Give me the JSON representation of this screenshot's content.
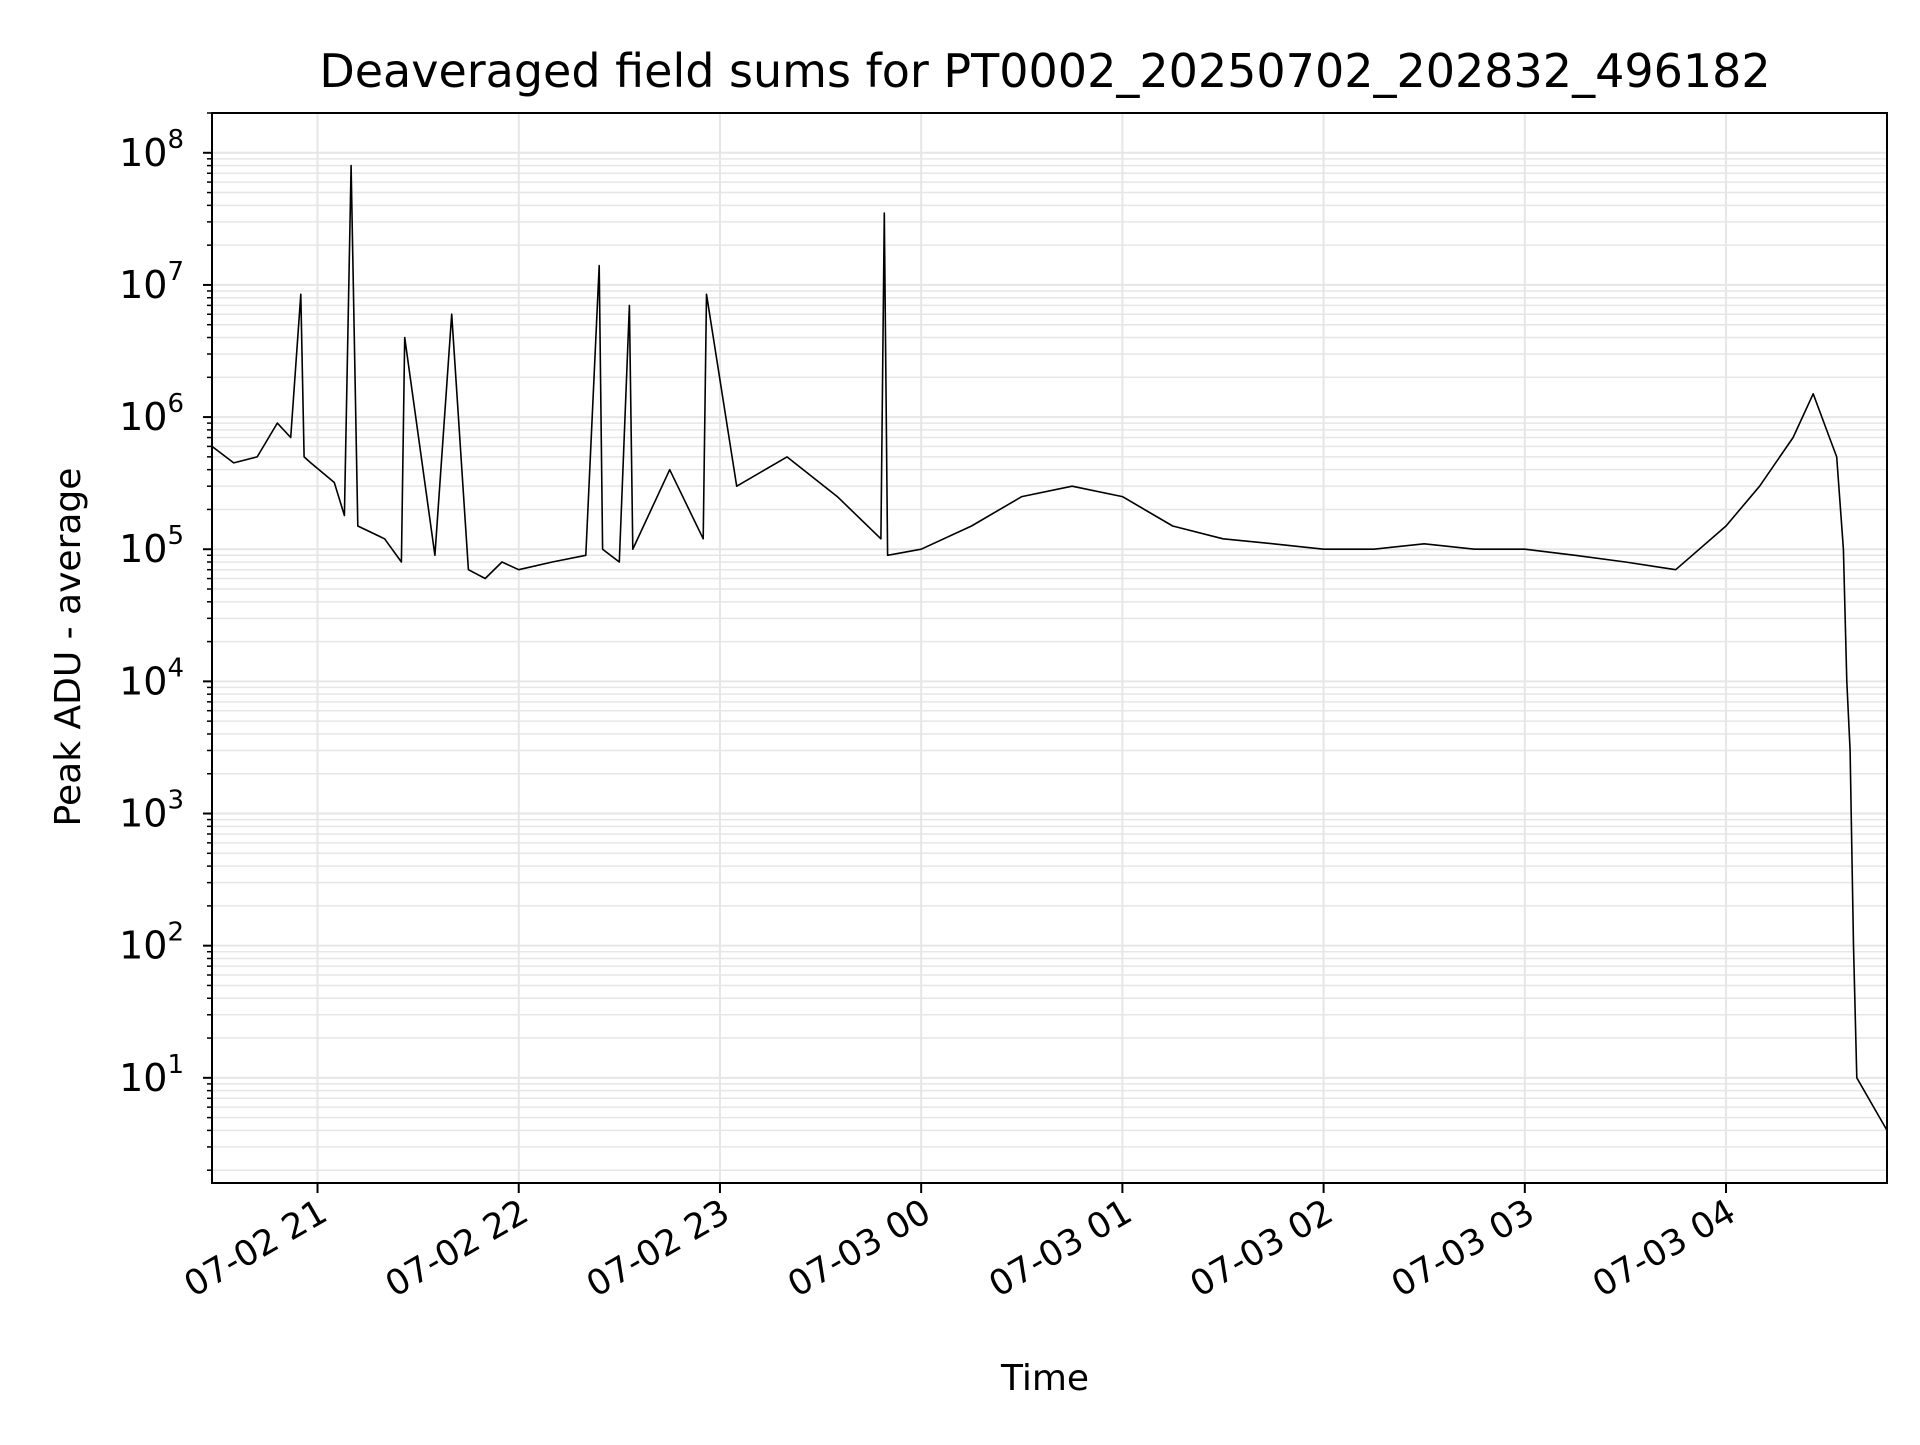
{
  "chart_data": {
    "type": "line",
    "title": "Deaveraged field sums for PT0002_20250702_202832_496182",
    "xlabel": "Time",
    "ylabel": "Peak ADU - average",
    "yscale": "log",
    "grid": true,
    "line_color": "#000000",
    "grid_color": "#e6e6e6",
    "xlim": [
      "2025-07-02 20:28:32",
      "2025-07-03 04:48:00"
    ],
    "ylim": [
      1.6,
      200000000
    ],
    "x_ticks": [
      {
        "label": "07-02 21",
        "time": "2025-07-02 21:00"
      },
      {
        "label": "07-02 22",
        "time": "2025-07-02 22:00"
      },
      {
        "label": "07-02 23",
        "time": "2025-07-02 23:00"
      },
      {
        "label": "07-03 00",
        "time": "2025-07-03 00:00"
      },
      {
        "label": "07-03 01",
        "time": "2025-07-03 01:00"
      },
      {
        "label": "07-03 02",
        "time": "2025-07-03 02:00"
      },
      {
        "label": "07-03 03",
        "time": "2025-07-03 03:00"
      },
      {
        "label": "07-03 04",
        "time": "2025-07-03 04:00"
      }
    ],
    "y_ticks": [
      {
        "base": "10",
        "exp": "1",
        "value": 10
      },
      {
        "base": "10",
        "exp": "2",
        "value": 100
      },
      {
        "base": "10",
        "exp": "3",
        "value": 1000
      },
      {
        "base": "10",
        "exp": "4",
        "value": 10000
      },
      {
        "base": "10",
        "exp": "5",
        "value": 100000
      },
      {
        "base": "10",
        "exp": "6",
        "value": 1000000
      },
      {
        "base": "10",
        "exp": "7",
        "value": 10000000
      },
      {
        "base": "10",
        "exp": "8",
        "value": 100000000
      }
    ],
    "series": [
      {
        "x": [
          "2025-07-02 20:28:32",
          "2025-07-02 20:35",
          "2025-07-02 20:42",
          "2025-07-02 20:48",
          "2025-07-02 20:52",
          "2025-07-02 20:55",
          "2025-07-02 20:56",
          "2025-07-02 20:58",
          "2025-07-02 21:05",
          "2025-07-02 21:08",
          "2025-07-02 21:10",
          "2025-07-02 21:12",
          "2025-07-02 21:20",
          "2025-07-02 21:25",
          "2025-07-02 21:26",
          "2025-07-02 21:35",
          "2025-07-02 21:40",
          "2025-07-02 21:45",
          "2025-07-02 21:50",
          "2025-07-02 21:55",
          "2025-07-02 22:00",
          "2025-07-02 22:10",
          "2025-07-02 22:20",
          "2025-07-02 22:24",
          "2025-07-02 22:25",
          "2025-07-02 22:30",
          "2025-07-02 22:33",
          "2025-07-02 22:34",
          "2025-07-02 22:45",
          "2025-07-02 22:55",
          "2025-07-02 22:56",
          "2025-07-02 23:05",
          "2025-07-02 23:20",
          "2025-07-02 23:35",
          "2025-07-02 23:48",
          "2025-07-02 23:49",
          "2025-07-02 23:50",
          "2025-07-03 00:00",
          "2025-07-03 00:15",
          "2025-07-03 00:30",
          "2025-07-03 00:45",
          "2025-07-03 01:00",
          "2025-07-03 01:15",
          "2025-07-03 01:30",
          "2025-07-03 01:45",
          "2025-07-03 02:00",
          "2025-07-03 02:15",
          "2025-07-03 02:30",
          "2025-07-03 02:45",
          "2025-07-03 03:00",
          "2025-07-03 03:15",
          "2025-07-03 03:30",
          "2025-07-03 03:45",
          "2025-07-03 04:00",
          "2025-07-03 04:10",
          "2025-07-03 04:20",
          "2025-07-03 04:26",
          "2025-07-03 04:30",
          "2025-07-03 04:33",
          "2025-07-03 04:35",
          "2025-07-03 04:36",
          "2025-07-03 04:37",
          "2025-07-03 04:38",
          "2025-07-03 04:39",
          "2025-07-03 04:48"
        ],
        "y": [
          600000,
          450000,
          500000,
          900000,
          700000,
          8500000,
          500000,
          450000,
          320000,
          180000,
          80000000,
          150000,
          120000,
          80000,
          4000000,
          90000,
          6000000,
          70000,
          60000,
          80000,
          70000,
          80000,
          90000,
          14000000,
          100000,
          80000,
          7000000,
          100000,
          400000,
          120000,
          8500000,
          300000,
          500000,
          250000,
          120000,
          35000000,
          90000,
          100000,
          150000,
          250000,
          300000,
          250000,
          150000,
          120000,
          110000,
          100000,
          100000,
          110000,
          100000,
          100000,
          90000,
          80000,
          70000,
          150000,
          300000,
          700000,
          1500000,
          800000,
          500000,
          100000,
          10000,
          3000,
          100,
          10,
          4
        ]
      }
    ]
  }
}
